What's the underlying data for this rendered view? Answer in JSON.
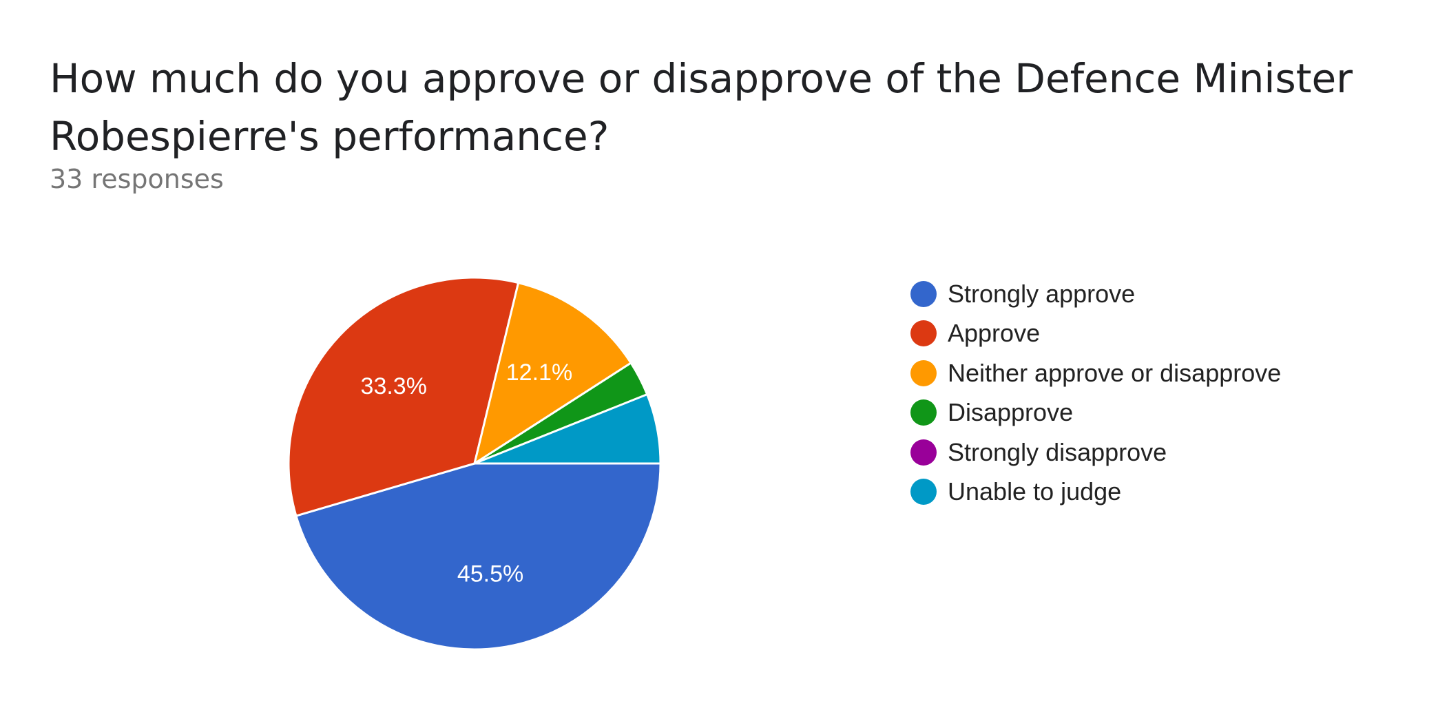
{
  "header": {
    "title": "How much do you approve or disapprove of the Defence Minister Robespierre's performance?",
    "responses": "33 responses"
  },
  "chart_data": {
    "type": "pie",
    "title": "How much do you approve or disapprove of the Defence Minister Robespierre's performance?",
    "subtitle": "33 responses",
    "legend_position": "right",
    "slices": [
      {
        "label": "Strongly approve",
        "count": 15,
        "percent": 45.5,
        "percent_label": "45.5%",
        "color": "#3366cc"
      },
      {
        "label": "Approve",
        "count": 11,
        "percent": 33.3,
        "percent_label": "33.3%",
        "color": "#dc3912"
      },
      {
        "label": "Neither approve or disapprove",
        "count": 4,
        "percent": 12.1,
        "percent_label": "12.1%",
        "color": "#ff9900"
      },
      {
        "label": "Disapprove",
        "count": 1,
        "percent": 3.0,
        "percent_label": "",
        "color": "#109618"
      },
      {
        "label": "Strongly disapprove",
        "count": 0,
        "percent": 0,
        "percent_label": "",
        "color": "#990099"
      },
      {
        "label": "Unable to judge",
        "count": 2,
        "percent": 6.1,
        "percent_label": "",
        "color": "#0099c6"
      }
    ]
  }
}
